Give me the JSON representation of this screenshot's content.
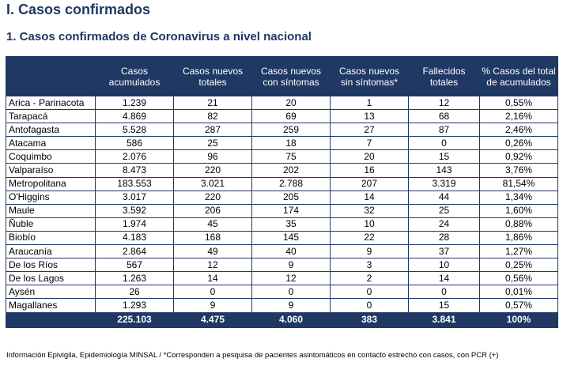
{
  "heading": "I. Casos confirmados",
  "subheading": "1. Casos confirmados de Coronavirus a nivel nacional",
  "columns": [
    "",
    "Casos acumulados",
    "Casos nuevos totales",
    "Casos nuevos con síntomas",
    "Casos nuevos sin síntomas*",
    "Fallecidos totales",
    "% Casos del total de acumulados"
  ],
  "rows": [
    [
      "Arica - Parinacota",
      "1.239",
      "21",
      "20",
      "1",
      "12",
      "0,55%"
    ],
    [
      "Tarapacá",
      "4.869",
      "82",
      "69",
      "13",
      "68",
      "2,16%"
    ],
    [
      "Antofagasta",
      "5.528",
      "287",
      "259",
      "27",
      "87",
      "2,46%"
    ],
    [
      "Atacama",
      "586",
      "25",
      "18",
      "7",
      "0",
      "0,26%"
    ],
    [
      "Coquimbo",
      "2.076",
      "96",
      "75",
      "20",
      "15",
      "0,92%"
    ],
    [
      "Valparaíso",
      "8.473",
      "220",
      "202",
      "16",
      "143",
      "3,76%"
    ],
    [
      "Metropolitana",
      "183.553",
      "3.021",
      "2.788",
      "207",
      "3.319",
      "81,54%"
    ],
    [
      "O'Higgins",
      "3.017",
      "220",
      "205",
      "14",
      "44",
      "1,34%"
    ],
    [
      "Maule",
      "3.592",
      "206",
      "174",
      "32",
      "25",
      "1,60%"
    ],
    [
      "Ñuble",
      "1.974",
      "45",
      "35",
      "10",
      "24",
      "0,88%"
    ],
    [
      "Biobío",
      "4.183",
      "168",
      "145",
      "22",
      "28",
      "1,86%"
    ],
    [
      "Araucanía",
      "2.864",
      "49",
      "40",
      "9",
      "37",
      "1,27%"
    ],
    [
      "De los Ríos",
      "567",
      "12",
      "9",
      "3",
      "10",
      "0,25%"
    ],
    [
      "De los Lagos",
      "1.263",
      "14",
      "12",
      "2",
      "14",
      "0,56%"
    ],
    [
      "Aysén",
      "26",
      "0",
      "0",
      "0",
      "0",
      "0,01%"
    ],
    [
      "Magallanes",
      "1.293",
      "9",
      "9",
      "0",
      "15",
      "0,57%"
    ]
  ],
  "totals": [
    "",
    "225.103",
    "4.475",
    "4.060",
    "383",
    "3.841",
    "100%"
  ],
  "footnote": "Información Epivigila, Epidemiología MINSAL / *Corresponden a pesquisa de pacientes asintomáticos en contacto estrecho con casos, con PCR (+)",
  "colors": {
    "header_bg": "#1f3864",
    "heading_text": "#1f3864"
  }
}
